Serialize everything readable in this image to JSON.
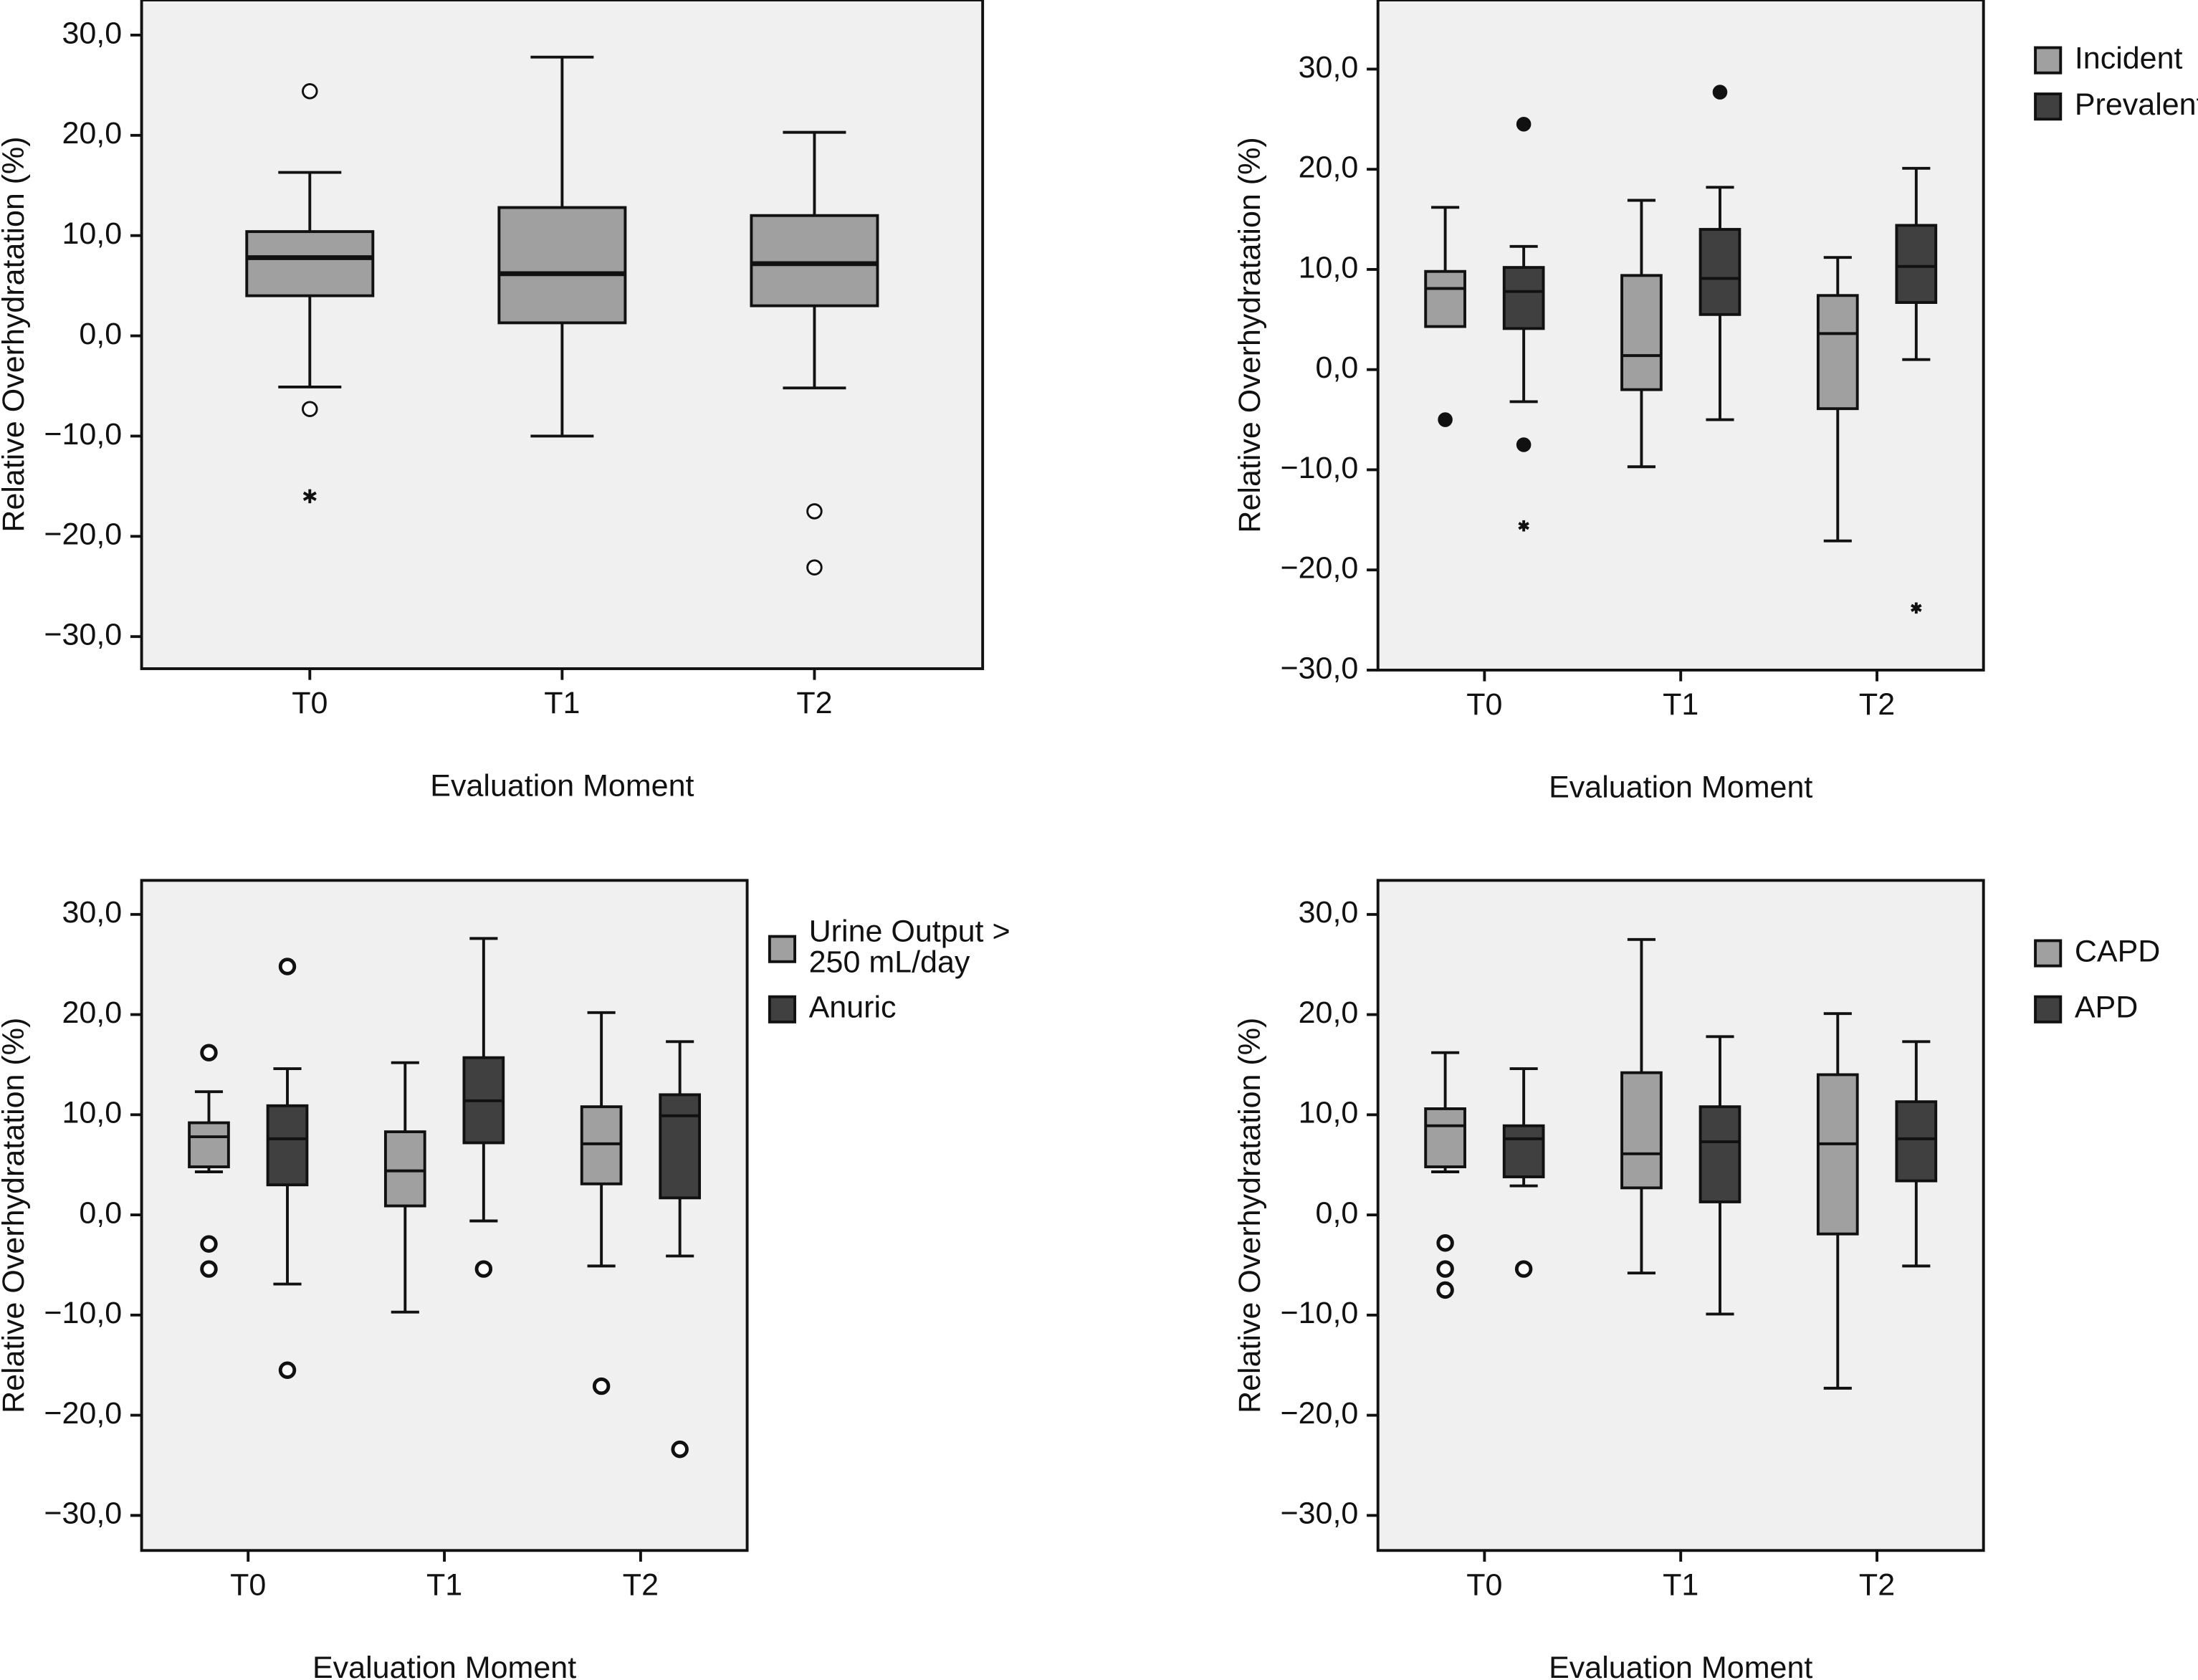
{
  "chart_data": [
    {
      "type": "box",
      "x_label": "Evaluation Moment",
      "y_label": "Relative Overhydratation (%)",
      "categories": [
        "T0",
        "T1",
        "T2"
      ],
      "outlier_marker": "open",
      "ylim": [
        -33.2,
        33.5
      ],
      "yticks": [
        {
          "value": 30,
          "label": "30,0"
        },
        {
          "value": 20,
          "label": "20,0"
        },
        {
          "value": 10,
          "label": "10,0"
        },
        {
          "value": 0,
          "label": "0,0"
        },
        {
          "value": -10,
          "label": "−10,0"
        },
        {
          "value": -20,
          "label": "−20,0"
        },
        {
          "value": -30,
          "label": "−30,0"
        }
      ],
      "series": [
        {
          "color": "#a0a0a0",
          "boxes": [
            {
              "min": -5.1,
              "q1": 4.0,
              "median": 7.8,
              "q3": 10.4,
              "max": 16.3,
              "outliers": [
                24.4,
                -7.3
              ],
              "extremes": [
                -16.0
              ]
            },
            {
              "min": -10.0,
              "q1": 1.3,
              "median": 6.2,
              "q3": 12.8,
              "max": 27.8,
              "outliers": [],
              "extremes": []
            },
            {
              "min": -5.2,
              "q1": 3.0,
              "median": 7.2,
              "q3": 12.0,
              "max": 20.3,
              "outliers": [
                -17.5,
                -23.1
              ],
              "extremes": []
            }
          ]
        }
      ]
    },
    {
      "type": "box",
      "x_label": "Evaluation Moment",
      "y_label": "Relative Overhydratation (%)",
      "categories": [
        "T0",
        "T1",
        "T2"
      ],
      "outlier_marker": "filled",
      "legend": "right",
      "ylim": [
        -30,
        36.9
      ],
      "yticks": [
        {
          "value": 30,
          "label": "30,0"
        },
        {
          "value": 20,
          "label": "20,0"
        },
        {
          "value": 10,
          "label": "10,0"
        },
        {
          "value": 0,
          "label": "0,0"
        },
        {
          "value": -10,
          "label": "−10,0"
        },
        {
          "value": -20,
          "label": "−20,0"
        },
        {
          "value": -30,
          "label": "−30,0"
        }
      ],
      "series": [
        {
          "name": "Incident",
          "color": "#a0a0a0",
          "boxes": [
            {
              "min": 4.3,
              "q1": 4.3,
              "median": 8.1,
              "q3": 9.8,
              "max": 16.2,
              "outliers": [
                -5.0
              ],
              "extremes": []
            },
            {
              "min": -9.7,
              "q1": -2.0,
              "median": 1.4,
              "q3": 9.4,
              "max": 16.9,
              "outliers": [],
              "extremes": []
            },
            {
              "min": -17.1,
              "q1": -3.9,
              "median": 3.6,
              "q3": 7.4,
              "max": 11.2,
              "outliers": [],
              "extremes": []
            }
          ]
        },
        {
          "name": "Prevalent",
          "color": "#404040",
          "boxes": [
            {
              "min": -3.2,
              "q1": 4.1,
              "median": 7.8,
              "q3": 10.2,
              "max": 12.3,
              "outliers": [
                24.5,
                -7.5
              ],
              "extremes": [
                -15.6
              ]
            },
            {
              "min": -5.0,
              "q1": 5.5,
              "median": 9.1,
              "q3": 14.0,
              "max": 18.2,
              "outliers": [
                27.7
              ],
              "extremes": []
            },
            {
              "min": 1.0,
              "q1": 6.7,
              "median": 10.3,
              "q3": 14.4,
              "max": 20.1,
              "outliers": [],
              "extremes": [
                -23.8
              ]
            }
          ]
        }
      ]
    },
    {
      "type": "box",
      "x_label": "Evaluation Moment",
      "y_label": "Relative Overhydratation (%)",
      "categories": [
        "T0",
        "T1",
        "T2"
      ],
      "outlier_marker": "open",
      "legend": "right",
      "ylim": [
        -33.5,
        33.4
      ],
      "yticks": [
        {
          "value": 30,
          "label": "30,0"
        },
        {
          "value": 20,
          "label": "20,0"
        },
        {
          "value": 10,
          "label": "10,0"
        },
        {
          "value": 0,
          "label": "0,0"
        },
        {
          "value": -10,
          "label": "−10,0"
        },
        {
          "value": -20,
          "label": "−20,0"
        },
        {
          "value": -30,
          "label": "−30,0"
        }
      ],
      "series": [
        {
          "name": "Urine Output > 250 mL/day",
          "color": "#a0a0a0",
          "boxes": [
            {
              "min": 4.3,
              "q1": 4.8,
              "median": 7.8,
              "q3": 9.2,
              "max": 12.3,
              "outliers": [
                16.2,
                -2.9,
                -5.4
              ],
              "extremes": []
            },
            {
              "min": -9.7,
              "q1": 0.9,
              "median": 4.4,
              "q3": 8.3,
              "max": 15.2,
              "outliers": [],
              "extremes": []
            },
            {
              "min": -5.1,
              "q1": 3.1,
              "median": 7.1,
              "q3": 10.8,
              "max": 20.2,
              "outliers": [
                -17.1
              ],
              "extremes": []
            }
          ]
        },
        {
          "name": "Anuric",
          "color": "#404040",
          "boxes": [
            {
              "min": -6.9,
              "q1": 3.0,
              "median": 7.6,
              "q3": 10.9,
              "max": 14.6,
              "outliers": [
                24.8,
                -15.5
              ],
              "extremes": []
            },
            {
              "min": -0.6,
              "q1": 7.2,
              "median": 11.4,
              "q3": 15.7,
              "max": 27.6,
              "outliers": [
                -5.4
              ],
              "extremes": []
            },
            {
              "min": -4.1,
              "q1": 1.7,
              "median": 9.9,
              "q3": 12.0,
              "max": 17.3,
              "outliers": [
                -23.4
              ],
              "extremes": []
            }
          ]
        }
      ]
    },
    {
      "type": "box",
      "x_label": "Evaluation Moment",
      "y_label": "Relative Overhydratation (%)",
      "categories": [
        "T0",
        "T1",
        "T2"
      ],
      "outlier_marker": "open",
      "legend": "right",
      "ylim": [
        -33.5,
        33.4
      ],
      "yticks": [
        {
          "value": 30,
          "label": "30,0"
        },
        {
          "value": 20,
          "label": "20,0"
        },
        {
          "value": 10,
          "label": "10,0"
        },
        {
          "value": 0,
          "label": "0,0"
        },
        {
          "value": -10,
          "label": "−10,0"
        },
        {
          "value": -20,
          "label": "−20,0"
        },
        {
          "value": -30,
          "label": "−30,0"
        }
      ],
      "series": [
        {
          "name": "CAPD",
          "color": "#a0a0a0",
          "boxes": [
            {
              "min": 4.3,
              "q1": 4.8,
              "median": 8.9,
              "q3": 10.6,
              "max": 16.2,
              "outliers": [
                -2.8,
                -5.4,
                -7.5
              ],
              "extremes": []
            },
            {
              "min": -5.8,
              "q1": 2.7,
              "median": 6.1,
              "q3": 14.2,
              "max": 27.5,
              "outliers": [],
              "extremes": []
            },
            {
              "min": -17.3,
              "q1": -1.9,
              "median": 7.1,
              "q3": 14.0,
              "max": 20.1,
              "outliers": [],
              "extremes": []
            }
          ]
        },
        {
          "name": "APD",
          "color": "#404040",
          "boxes": [
            {
              "min": 2.9,
              "q1": 3.8,
              "median": 7.6,
              "q3": 8.9,
              "max": 14.6,
              "outliers": [
                -5.4
              ],
              "extremes": []
            },
            {
              "min": -9.9,
              "q1": 1.3,
              "median": 7.3,
              "q3": 10.8,
              "max": 17.8,
              "outliers": [],
              "extremes": []
            },
            {
              "min": -5.1,
              "q1": 3.4,
              "median": 7.6,
              "q3": 11.3,
              "max": 17.3,
              "outliers": [],
              "extremes": []
            }
          ]
        }
      ]
    }
  ]
}
